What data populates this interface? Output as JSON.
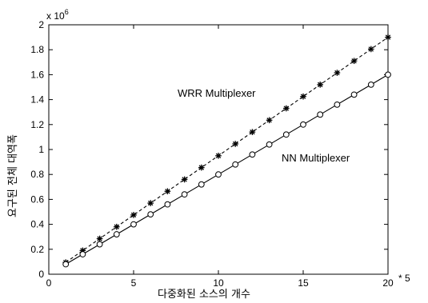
{
  "chart_data": {
    "type": "line",
    "title": "",
    "xlabel": "다중화된 소스의 개수",
    "ylabel": "요구된 전체 대역폭",
    "x_multiplier_label": "* 5",
    "y_multiplier_base": "x 10",
    "y_multiplier_exp": "6",
    "xlim": [
      0,
      20
    ],
    "ylim": [
      0,
      2
    ],
    "x_ticks": [
      "0",
      "5",
      "10",
      "15",
      "20"
    ],
    "y_ticks": [
      "0",
      "0.2",
      "0.4",
      "0.6",
      "0.8",
      "1",
      "1.2",
      "1.4",
      "1.6",
      "1.8",
      "2"
    ],
    "grid": false,
    "legend": "none",
    "x": [
      1,
      2,
      3,
      4,
      5,
      6,
      7,
      8,
      9,
      10,
      11,
      12,
      13,
      14,
      15,
      16,
      17,
      18,
      19,
      20
    ],
    "series": [
      {
        "name": "WRR Multiplexer",
        "line_style": "dashed",
        "marker": "asterisk",
        "values": [
          0.095,
          0.19,
          0.285,
          0.38,
          0.475,
          0.57,
          0.665,
          0.76,
          0.855,
          0.95,
          1.045,
          1.14,
          1.235,
          1.33,
          1.425,
          1.52,
          1.615,
          1.71,
          1.805,
          1.9
        ]
      },
      {
        "name": "NN Multiplexer",
        "line_style": "solid",
        "marker": "circle",
        "values": [
          0.08,
          0.16,
          0.24,
          0.32,
          0.4,
          0.48,
          0.56,
          0.64,
          0.72,
          0.8,
          0.88,
          0.96,
          1.04,
          1.12,
          1.2,
          1.28,
          1.36,
          1.44,
          1.52,
          1.6
        ]
      }
    ]
  }
}
